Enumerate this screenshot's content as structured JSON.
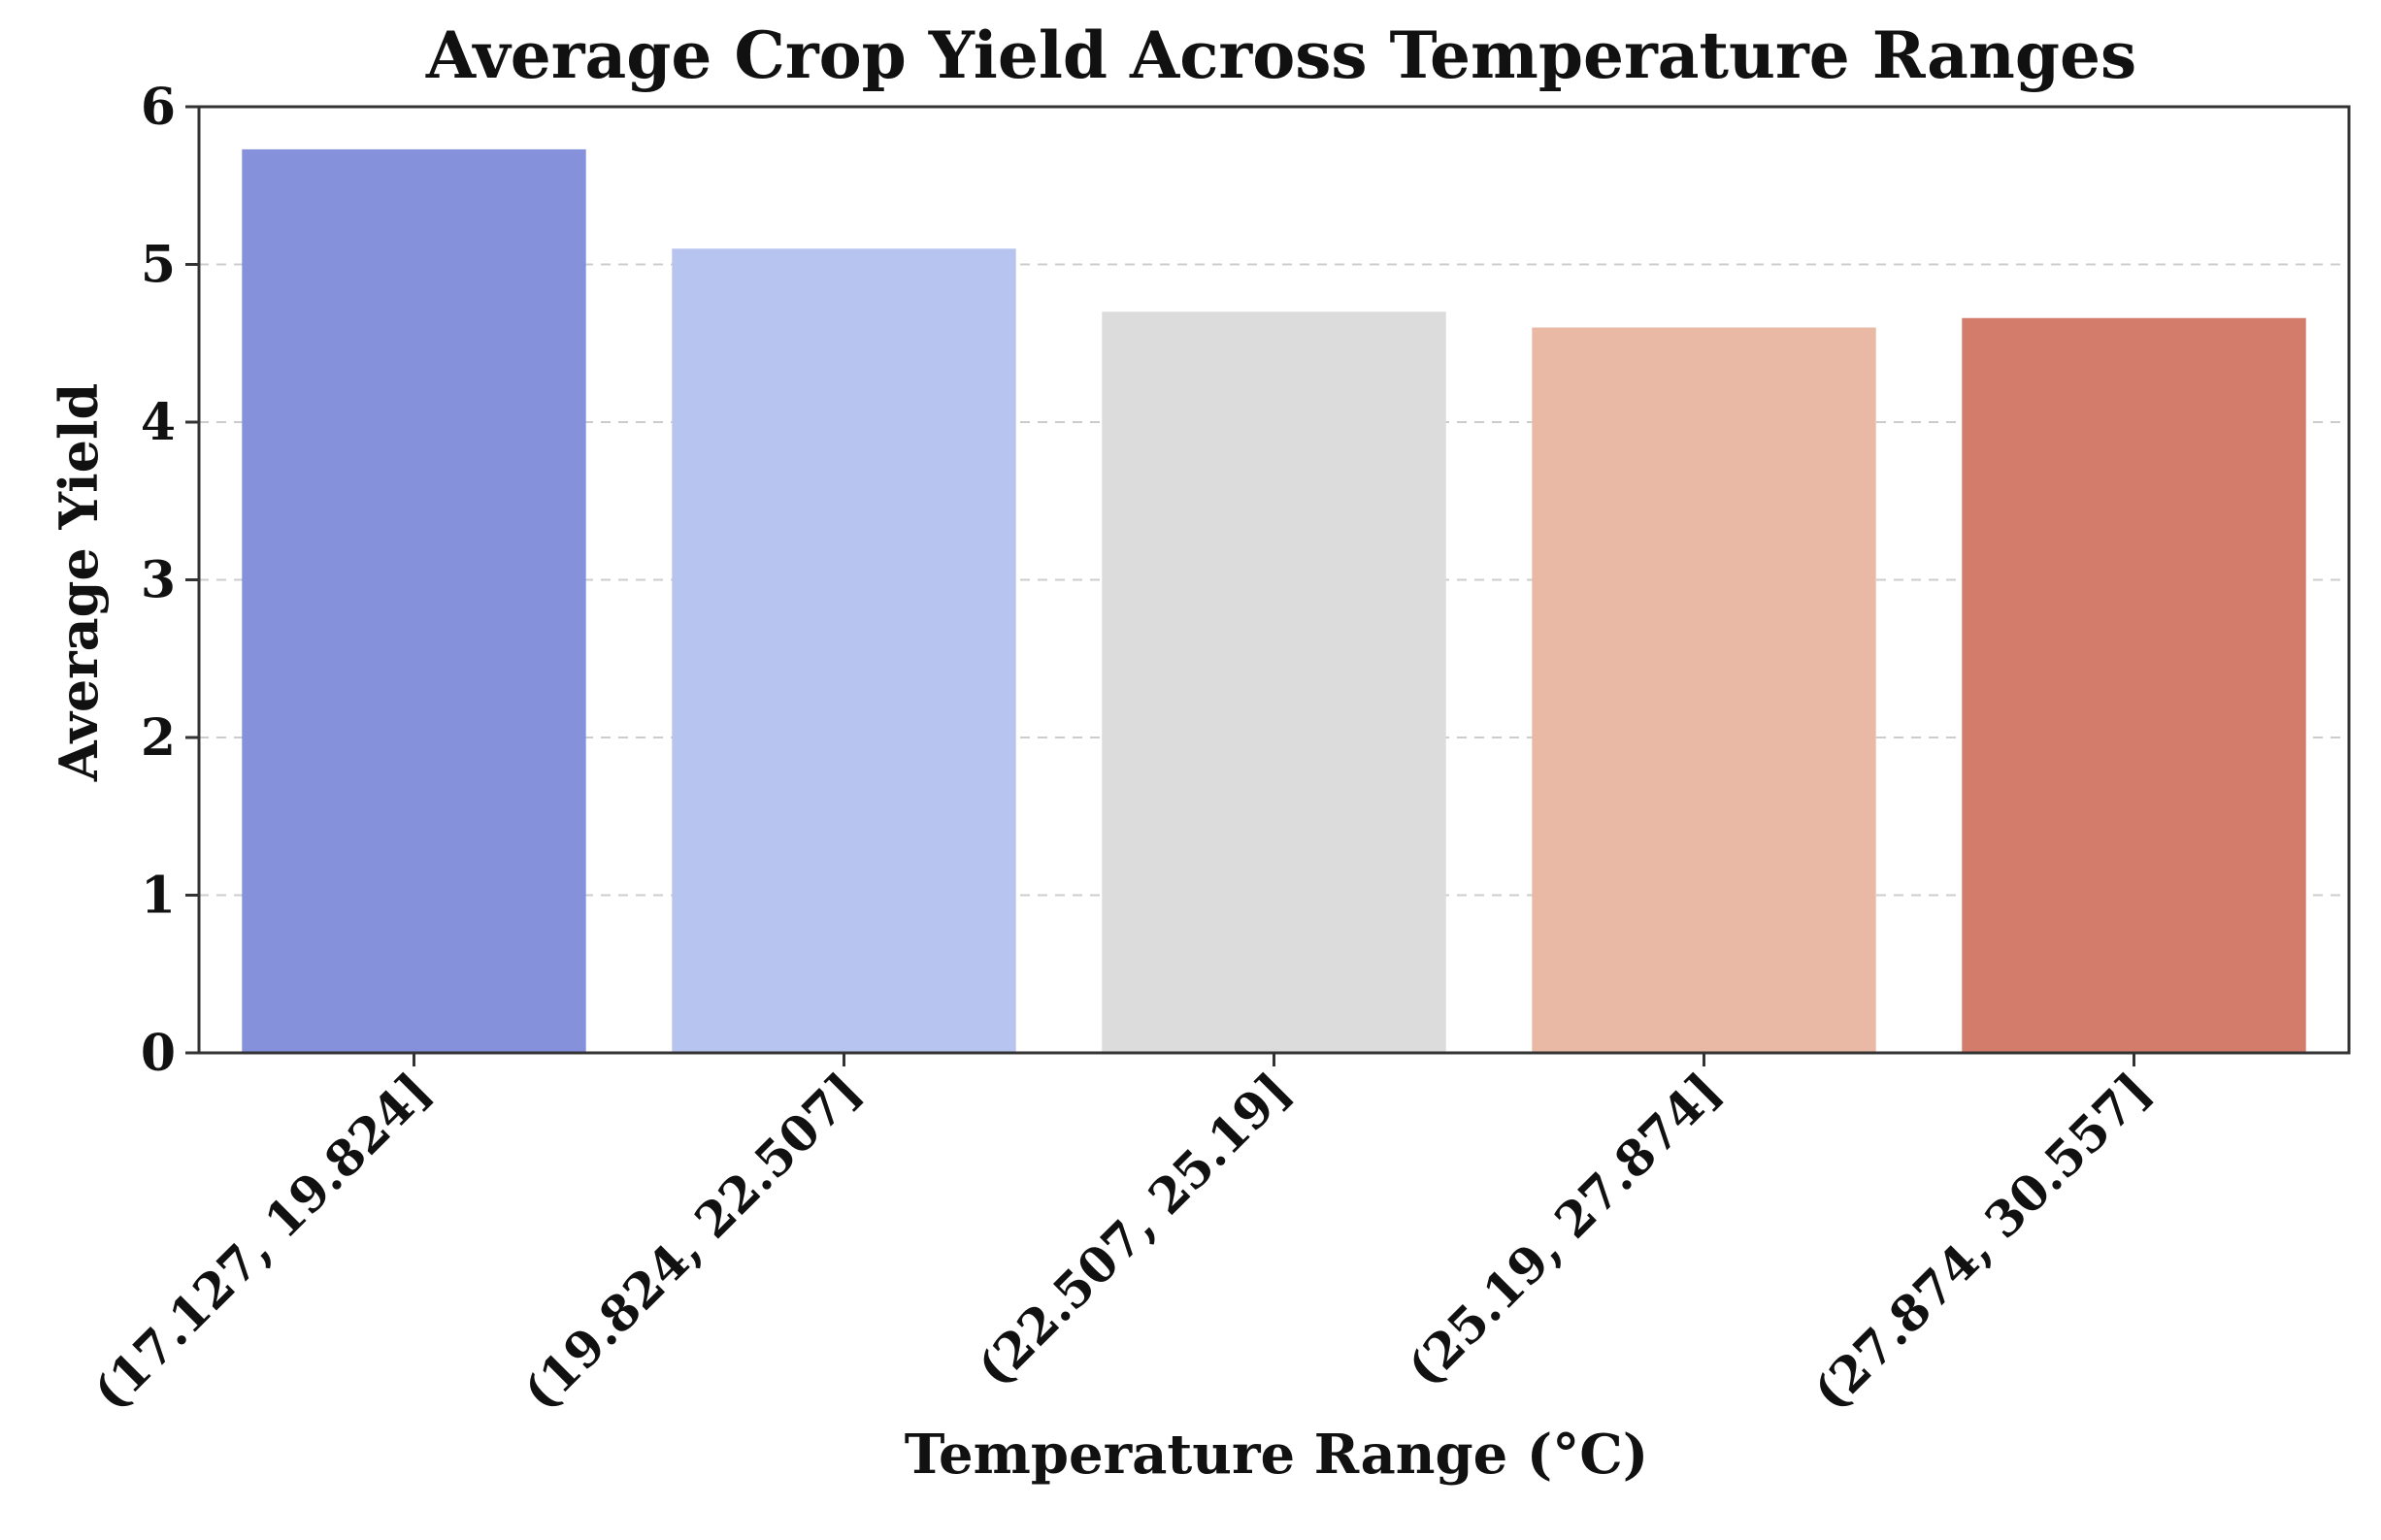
{
  "chart_data": {
    "type": "bar",
    "title": "Average Crop Yield Across Temperature Ranges",
    "xlabel": "Temperature Range (°C)",
    "ylabel": "Average Yield",
    "categories": [
      "(17.127, 19.824]",
      "(19.824, 22.507]",
      "(22.507, 25.19]",
      "(25.19, 27.874]",
      "(27.874, 30.557]"
    ],
    "values": [
      5.73,
      5.1,
      4.7,
      4.6,
      4.66
    ],
    "colors": [
      "#8592db",
      "#b8c4f0",
      "#dcdcdc",
      "#eab9a5",
      "#d47c6b"
    ],
    "ylim": [
      0,
      6
    ],
    "yticks": [
      "0",
      "1",
      "2",
      "3",
      "4",
      "5",
      "6"
    ],
    "grid": true,
    "grid_axis": "y",
    "grid_style": "dashed",
    "legend": false
  }
}
